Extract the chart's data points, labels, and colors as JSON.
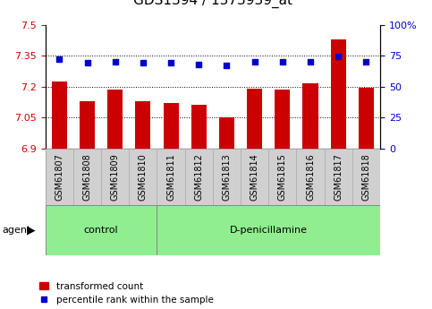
{
  "title": "GDS1394 / 1373939_at",
  "categories": [
    "GSM61807",
    "GSM61808",
    "GSM61809",
    "GSM61810",
    "GSM61811",
    "GSM61812",
    "GSM61813",
    "GSM61814",
    "GSM61815",
    "GSM61816",
    "GSM61817",
    "GSM61818"
  ],
  "bar_values": [
    7.225,
    7.13,
    7.185,
    7.13,
    7.12,
    7.11,
    7.05,
    7.19,
    7.185,
    7.215,
    7.43,
    7.195
  ],
  "percentile_values": [
    72,
    69,
    70,
    69,
    69,
    68,
    67,
    70,
    70,
    70,
    74,
    70
  ],
  "ylim_left": [
    6.9,
    7.5
  ],
  "ylim_right": [
    0,
    100
  ],
  "yticks_left": [
    6.9,
    7.05,
    7.2,
    7.35,
    7.5
  ],
  "yticks_right": [
    0,
    25,
    50,
    75,
    100
  ],
  "ytick_labels_left": [
    "6.9",
    "7.05",
    "7.2",
    "7.35",
    "7.5"
  ],
  "ytick_labels_right": [
    "0",
    "25",
    "50",
    "75",
    "100%"
  ],
  "bar_color": "#cc0000",
  "dot_color": "#0000cc",
  "n_control": 4,
  "n_treatment": 8,
  "control_label": "control",
  "treatment_label": "D-penicillamine",
  "agent_label": "agent",
  "legend_bar_label": "transformed count",
  "legend_dot_label": "percentile rank within the sample",
  "title_fontsize": 11,
  "tick_fontsize": 8,
  "label_fontsize": 7
}
